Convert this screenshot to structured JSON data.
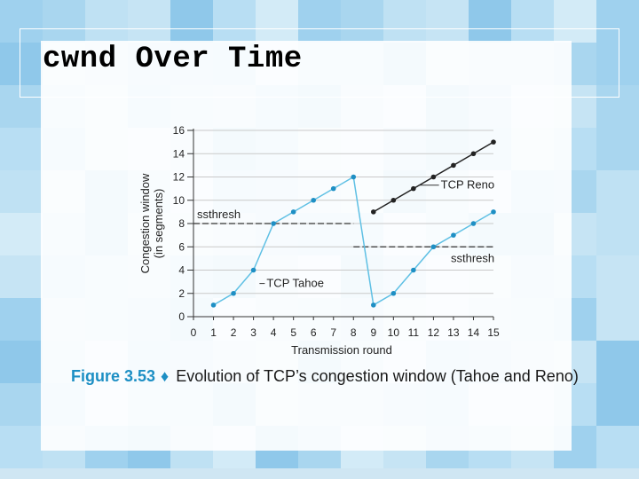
{
  "slide": {
    "title": "cwnd Over Time"
  },
  "caption": {
    "figure_label": "Figure 3.53",
    "diamond": "♦",
    "text": "Evolution of TCP’s congestion window (Tahoe and Reno)"
  },
  "colors": {
    "series_line": "#5fc0e4",
    "series_marker": "#1e8fc4",
    "reno_line": "#222222",
    "ssthresh": "#333333"
  },
  "chart_data": {
    "type": "line",
    "xlabel": "Transmission round",
    "ylabel_lines": [
      "Congestion window",
      "(in segments)"
    ],
    "x_ticks": [
      0,
      1,
      2,
      3,
      4,
      5,
      6,
      7,
      8,
      9,
      10,
      11,
      12,
      13,
      14,
      15
    ],
    "y_ticks": [
      0,
      2,
      4,
      6,
      8,
      10,
      12,
      14,
      16
    ],
    "xlim": [
      0,
      15
    ],
    "ylim": [
      0,
      16
    ],
    "grid": true,
    "series": [
      {
        "name": "TCP Tahoe",
        "style": "blue",
        "x": [
          1,
          2,
          3,
          4,
          5,
          6,
          7,
          8,
          9,
          10,
          11,
          12,
          13,
          14,
          15
        ],
        "y": [
          1,
          2,
          4,
          8,
          9,
          10,
          11,
          12,
          1,
          2,
          4,
          6,
          7,
          8,
          9
        ]
      },
      {
        "name": "TCP Reno",
        "style": "black",
        "x": [
          9,
          10,
          11,
          12,
          13,
          14,
          15
        ],
        "y": [
          9,
          10,
          11,
          12,
          13,
          14,
          15
        ]
      }
    ],
    "ssthresh_lines": [
      {
        "label": "ssthresh",
        "x_start": 0,
        "x_end": 8,
        "y": 8
      },
      {
        "label": "ssthresh",
        "x_start": 8,
        "x_end": 15,
        "y": 6
      }
    ]
  }
}
